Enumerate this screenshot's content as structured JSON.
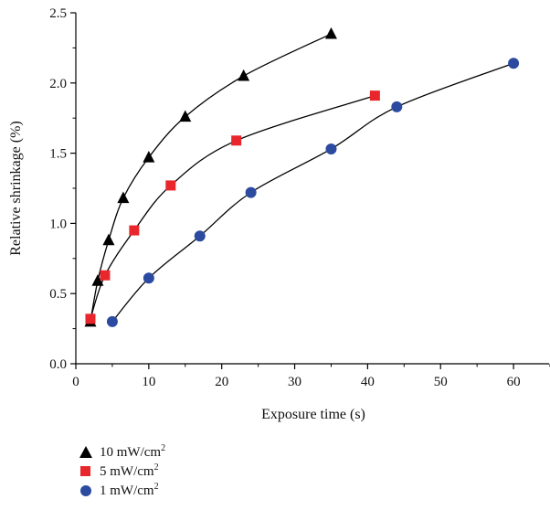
{
  "chart_data": {
    "type": "scatter",
    "xlabel": "Exposure time (s)",
    "ylabel": "Relative shrinkage (%)",
    "xlim": [
      0,
      65
    ],
    "ylim": [
      0,
      2.5
    ],
    "xticks": [
      0,
      10,
      20,
      30,
      40,
      50,
      60
    ],
    "yticks": [
      0.0,
      0.5,
      1.0,
      1.5,
      2.0,
      2.5
    ],
    "xtick_labels": [
      "0",
      "10",
      "20",
      "30",
      "40",
      "50",
      "60"
    ],
    "ytick_labels": [
      "0.0",
      "0.5",
      "1.0",
      "1.5",
      "2.0",
      "2.5"
    ],
    "grid": false,
    "legend_position": "bottom-left, below plot",
    "series": [
      {
        "name": "10 mW/cm2",
        "legend_unit": "mW/cm",
        "legend_value": "10",
        "legend_sup": "2",
        "marker": "triangle",
        "color": "#000000",
        "x": [
          2,
          3,
          4.5,
          6.5,
          10,
          15,
          23,
          35
        ],
        "y": [
          0.3,
          0.59,
          0.88,
          1.18,
          1.47,
          1.76,
          2.05,
          2.35
        ],
        "fit_curve": true
      },
      {
        "name": "5 mW/cm2",
        "legend_unit": "mW/cm",
        "legend_value": "5",
        "legend_sup": "2",
        "marker": "square",
        "color": "#e8262b",
        "x": [
          2,
          4,
          8,
          13,
          22,
          41
        ],
        "y": [
          0.32,
          0.63,
          0.95,
          1.27,
          1.59,
          1.91
        ],
        "fit_curve": true
      },
      {
        "name": "1 mW/cm2",
        "legend_unit": "mW/cm",
        "legend_value": "1",
        "legend_sup": "2",
        "marker": "circle",
        "color": "#2b4aa0",
        "x": [
          5,
          10,
          17,
          24,
          35,
          44,
          60
        ],
        "y": [
          0.3,
          0.61,
          0.91,
          1.22,
          1.53,
          1.83,
          2.14
        ],
        "fit_curve": true
      }
    ]
  }
}
